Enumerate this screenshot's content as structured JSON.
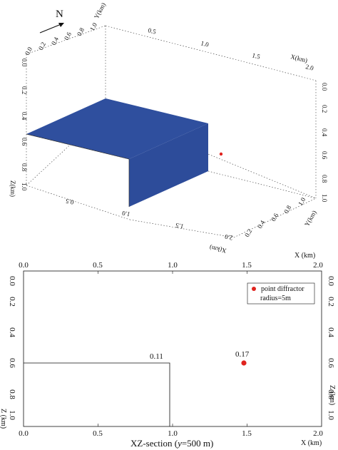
{
  "compass": {
    "label": "N"
  },
  "block3d": {
    "axis_x": "X(km)",
    "axis_y": "Y(km)",
    "axis_z": "Z(km)",
    "x_ticks": [
      "0.5",
      "1.0",
      "1.5",
      "2.0"
    ],
    "x_ticks_front": [
      "0.5",
      "1.0",
      "1.5",
      "2.0"
    ],
    "y_ticks": [
      "0.0",
      "0.2",
      "0.4",
      "0.6",
      "0.8",
      "1.0"
    ],
    "y_ticks_front": [
      "0.2",
      "0.4",
      "0.6",
      "0.8",
      "1.0"
    ],
    "z_ticks": [
      "0.0",
      "0.2",
      "0.4",
      "0.6",
      "0.8",
      "1.0"
    ],
    "z_ticks_right": [
      "0.0",
      "0.2",
      "0.4",
      "0.6",
      "0.8",
      "1.0"
    ],
    "block_color": "#2f4f9e",
    "diffractor_color": "#e0231e"
  },
  "section": {
    "axis_x": "X (km)",
    "axis_z": "Z (km)",
    "x_ticks": [
      "0.0",
      "0.5",
      "1.0",
      "1.5",
      "2.0"
    ],
    "z_ticks": [
      "0.0",
      "0.2",
      "0.4",
      "0.6",
      "0.8",
      "1.0"
    ],
    "step_label": "0.11",
    "diffractor_label": "0.17",
    "legend_line1": "point diffractor",
    "legend_line2": "radius=5m",
    "caption_prefix": "XZ-section (",
    "caption_var": "y",
    "caption_suffix": "=500 m)",
    "step": {
      "x_km": 1.0,
      "z_km": 0.6
    },
    "diffractor": {
      "x_km": 1.5,
      "z_km": 0.6
    },
    "marker_color": "#e0231e"
  }
}
